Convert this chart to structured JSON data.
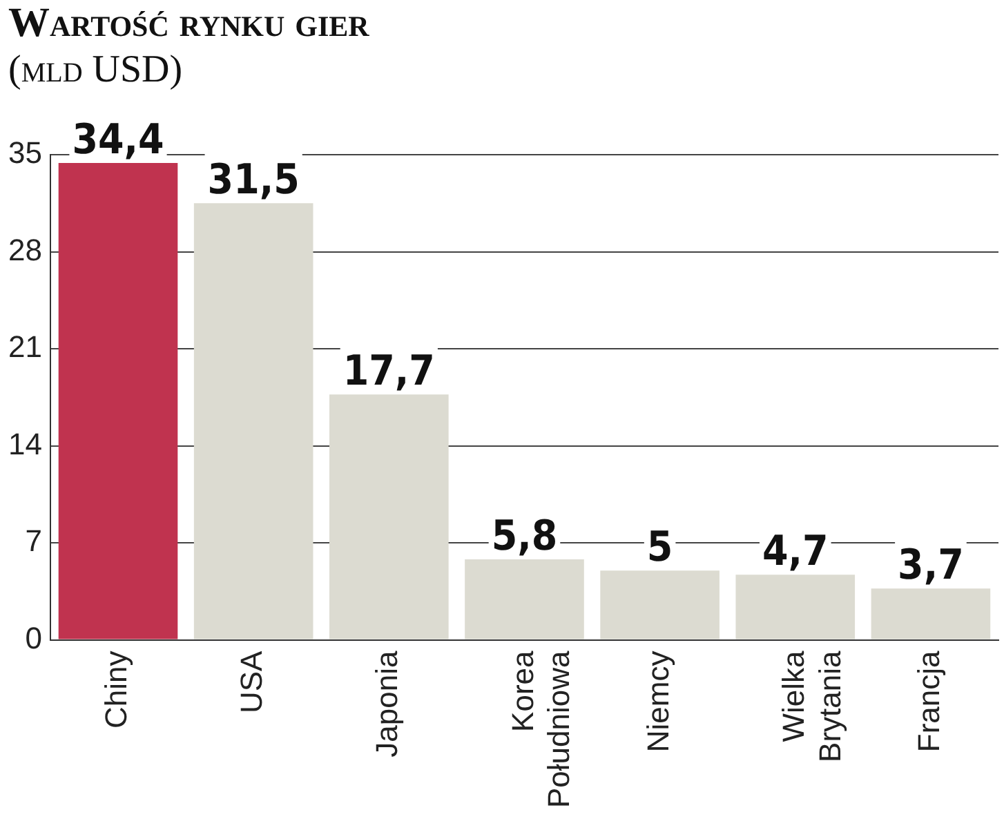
{
  "chart_data": {
    "type": "bar",
    "title": "Wartość rynku gier",
    "subtitle": "(mld USD)",
    "categories": [
      "Chiny",
      "USA",
      "Japonia",
      "Korea Południowa",
      "Niemcy",
      "Wielka Brytania",
      "Francja"
    ],
    "values": [
      34.4,
      31.5,
      17.7,
      5.8,
      5,
      4.7,
      3.7
    ],
    "colors": [
      "#c0334f",
      "#dcdbd1",
      "#dcdbd1",
      "#dcdbd1",
      "#dcdbd1",
      "#dcdbd1",
      "#dcdbd1"
    ],
    "value_labels": [
      "34,4",
      "31,5",
      "17,7",
      "5,8",
      "5",
      "4,7",
      "3,7"
    ],
    "ylim": [
      0,
      35
    ],
    "yticks": [
      0,
      7,
      14,
      21,
      28,
      35
    ],
    "grid": "y",
    "legend": false
  }
}
